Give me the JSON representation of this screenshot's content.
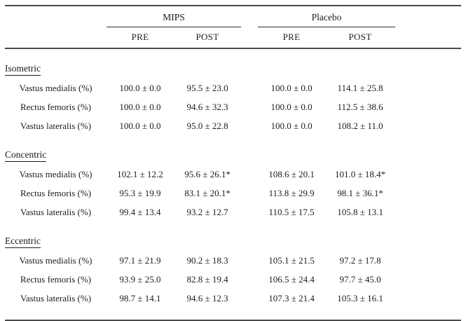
{
  "table": {
    "groups": [
      {
        "label": "MIPS"
      },
      {
        "label": "Placebo"
      }
    ],
    "col_headers": [
      "PRE",
      "POST",
      "PRE",
      "POST"
    ],
    "sections": [
      {
        "label": "Isometric",
        "rows": [
          {
            "label": "Vastus medialis (%)",
            "values": [
              "100.0 ± 0.0",
              "95.5 ± 23.0",
              "100.0 ± 0.0",
              "114.1 ± 25.8"
            ]
          },
          {
            "label": "Rectus femoris (%)",
            "values": [
              "100.0 ± 0.0",
              "94.6 ± 32.3",
              "100.0 ± 0.0",
              "112.5 ± 38.6"
            ]
          },
          {
            "label": "Vastus lateralis (%)",
            "values": [
              "100.0 ± 0.0",
              "95.0 ± 22.8",
              "100.0 ± 0.0",
              "108.2 ± 11.0"
            ]
          }
        ]
      },
      {
        "label": "Concentric",
        "rows": [
          {
            "label": "Vastus medialis (%)",
            "values": [
              "102.1 ± 12.2",
              "95.6 ± 26.1*",
              "108.6 ± 20.1",
              "101.0 ± 18.4*"
            ]
          },
          {
            "label": "Rectus femoris (%)",
            "values": [
              "95.3 ± 19.9",
              "83.1 ± 20.1*",
              "113.8 ± 29.9",
              "98.1 ± 36.1*"
            ]
          },
          {
            "label": "Vastus lateralis (%)",
            "values": [
              "99.4 ± 13.4",
              "93.2 ± 12.7",
              "110.5 ± 17.5",
              "105.8 ± 13.1"
            ]
          }
        ]
      },
      {
        "label": "Eccentric",
        "rows": [
          {
            "label": "Vastus medialis (%)",
            "values": [
              "97.1 ± 21.9",
              "90.2 ± 18.3",
              "105.1 ± 21.5",
              "97.2 ± 17.8"
            ]
          },
          {
            "label": "Rectus femoris (%)",
            "values": [
              "93.9 ± 25.0",
              "82.8 ± 19.4",
              "106.5 ± 24.4",
              "97.7 ± 45.0"
            ]
          },
          {
            "label": "Vastus lateralis (%)",
            "values": [
              "98.7 ± 14.1",
              "94.6 ± 12.3",
              "107.3 ± 21.4",
              "105.3 ± 16.1"
            ]
          }
        ]
      }
    ]
  },
  "colors": {
    "rule_thick": "#4a4a4a",
    "rule_thin": "#2e2e2e",
    "text": "#1c1c1c",
    "background": "#ffffff"
  }
}
